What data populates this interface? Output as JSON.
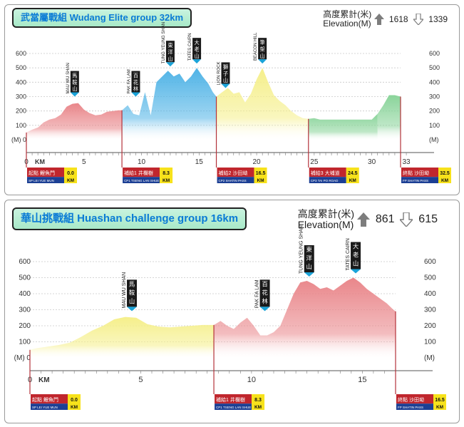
{
  "colors": {
    "red": "#e9868a",
    "blue": "#4fb3e6",
    "yellow": "#f5ef8a",
    "green": "#8ad49a",
    "peak_flag": "#1a1a1a",
    "flag_tip": "#1aa3d8"
  },
  "chart_data": [
    {
      "type": "area",
      "title": "武當屬戰組  Wudang Elite group 32km",
      "elevation_label_cn": "高度累計(米)",
      "elevation_label_en": "Elevation(M)",
      "ascent": "1618",
      "descent": "1339",
      "y_unit_label": "(M)",
      "x_unit_label": "KM",
      "xlim": [
        0,
        33
      ],
      "ylim": [
        0,
        600
      ],
      "x_ticks": [
        "0",
        "5",
        "10",
        "15",
        "20",
        "25",
        "30",
        "33"
      ],
      "x_tick_values": [
        0,
        5,
        10,
        15,
        20,
        25,
        30,
        33
      ],
      "y_ticks": [
        "600",
        "500",
        "400",
        "300",
        "200",
        "100",
        "0"
      ],
      "y_tick_values": [
        600,
        500,
        400,
        300,
        200,
        100,
        0
      ],
      "profile": {
        "x": [
          0,
          0.5,
          1,
          1.5,
          2,
          2.5,
          3,
          3.5,
          4,
          4.5,
          5,
          5.5,
          6,
          6.5,
          7,
          7.5,
          8,
          8.3,
          8.8,
          9.3,
          9.8,
          10.3,
          10.8,
          11.3,
          11.8,
          12.3,
          12.8,
          13.3,
          13.8,
          14.3,
          14.8,
          15.3,
          15.8,
          16.2,
          16.5,
          17,
          17.5,
          18,
          18.5,
          19,
          19.5,
          20,
          20.5,
          21,
          21.5,
          22,
          22.5,
          23,
          23.5,
          24,
          24.5,
          25,
          25.5,
          26,
          27,
          28,
          29,
          30,
          30.5,
          31,
          31.5,
          32,
          32.5
        ],
        "y": [
          50,
          70,
          85,
          120,
          140,
          150,
          175,
          230,
          250,
          255,
          210,
          185,
          170,
          175,
          195,
          200,
          205,
          205,
          240,
          180,
          170,
          330,
          170,
          400,
          440,
          480,
          440,
          460,
          400,
          440,
          500,
          440,
          390,
          330,
          300,
          330,
          360,
          320,
          330,
          260,
          320,
          420,
          500,
          400,
          310,
          270,
          240,
          200,
          170,
          150,
          145,
          150,
          140,
          140,
          140,
          140,
          140,
          140,
          180,
          240,
          310,
          310,
          300
        ]
      },
      "segments": [
        {
          "from": 0,
          "to": 8.3,
          "color": "red"
        },
        {
          "from": 8.3,
          "to": 16.5,
          "color": "blue"
        },
        {
          "from": 16.5,
          "to": 24.5,
          "color": "yellow"
        },
        {
          "from": 24.5,
          "to": 30.5,
          "color": "green_flat"
        },
        {
          "from": 30.5,
          "to": 32.5,
          "color": "green"
        }
      ],
      "peaks": [
        {
          "name": "MAU WU SHAN",
          "cn": "馬鞍山",
          "km": 4.2,
          "height": 270
        },
        {
          "name": "PAK FA LAM",
          "cn": "百花林",
          "km": 9.5,
          "height": 270
        },
        {
          "name": "TUNG YEUNG SHAN",
          "cn": "東洋山",
          "km": 12.5,
          "height": 480
        },
        {
          "name": "TATES CAIRN",
          "cn": "大老山",
          "km": 14.8,
          "height": 500
        },
        {
          "name": "LION ROCK",
          "cn": "獅子山",
          "km": 17.3,
          "height": 330
        },
        {
          "name": "BEACON HILL",
          "cn": "筆架山",
          "km": 20.5,
          "height": 500
        }
      ],
      "checkpoints": [
        {
          "km": 0,
          "tag": "起點",
          "cn": "鯉魚門",
          "en": "SP LEI YUE MUN",
          "dist": "0.0",
          "unit": "KM"
        },
        {
          "km": 8.3,
          "tag": "補給1",
          "cn": "井欄樹",
          "en": "CP1 TSENG LAN SHUE",
          "dist": "8.3",
          "unit": "KM"
        },
        {
          "km": 16.5,
          "tag": "補給2",
          "cn": "沙田坳",
          "en": "CP2 SHATIN PASS",
          "dist": "16.5",
          "unit": "KM"
        },
        {
          "km": 24.5,
          "tag": "補給3",
          "cn": "大埔道",
          "en": "CP3 TAI PO ROAD",
          "dist": "24.5",
          "unit": "KM"
        },
        {
          "km": 32.5,
          "tag": "終點",
          "cn": "沙田坳",
          "en": "FP SHATIN PASS",
          "dist": "32.5",
          "unit": "KM"
        }
      ]
    },
    {
      "type": "area",
      "title": "華山挑戰組  Huashan challenge group 16km",
      "elevation_label_cn": "高度累計(米)",
      "elevation_label_en": "Elevation(M)",
      "ascent": "861",
      "descent": "615",
      "y_unit_label": "(M)",
      "x_unit_label": "KM",
      "xlim": [
        0,
        16.8
      ],
      "ylim": [
        0,
        600
      ],
      "x_ticks": [
        "0",
        "5",
        "10",
        "15"
      ],
      "x_tick_values": [
        0,
        5,
        10,
        15
      ],
      "y_ticks": [
        "600",
        "500",
        "400",
        "300",
        "200",
        "100",
        "0"
      ],
      "y_tick_values": [
        600,
        500,
        400,
        300,
        200,
        100,
        0
      ],
      "profile": {
        "x": [
          0,
          0.3,
          0.8,
          1.3,
          1.8,
          2.3,
          2.8,
          3.3,
          3.8,
          4.3,
          4.8,
          5.3,
          5.8,
          6.3,
          6.8,
          7.3,
          7.8,
          8.3,
          8.6,
          8.9,
          9.2,
          9.5,
          9.8,
          10.1,
          10.4,
          10.7,
          11,
          11.3,
          11.6,
          11.9,
          12.2,
          12.5,
          12.8,
          13.1,
          13.4,
          13.7,
          14,
          14.3,
          14.6,
          14.9,
          15.2,
          15.5,
          15.8,
          16.1,
          16.4,
          16.5
        ],
        "y": [
          50,
          60,
          70,
          80,
          95,
          130,
          170,
          200,
          240,
          255,
          250,
          210,
          195,
          190,
          195,
          200,
          205,
          205,
          230,
          200,
          180,
          220,
          250,
          200,
          140,
          140,
          160,
          200,
          300,
          400,
          470,
          480,
          460,
          430,
          440,
          420,
          450,
          480,
          500,
          470,
          430,
          400,
          370,
          340,
          300,
          290
        ]
      },
      "segments": [
        {
          "from": 0,
          "to": 8.3,
          "color": "yellow"
        },
        {
          "from": 8.3,
          "to": 16.5,
          "color": "red"
        }
      ],
      "peaks": [
        {
          "name": "MAU WU SHAN",
          "cn": "馬鞍山",
          "km": 4.6,
          "height": 265
        },
        {
          "name": "PAK FA LAM",
          "cn": "百花林",
          "km": 10.6,
          "height": 265
        },
        {
          "name": "TUNG YEUNG SHAN",
          "cn": "東洋山",
          "km": 12.6,
          "height": 480
        },
        {
          "name": "TATES CAIRN",
          "cn": "大老山",
          "km": 14.7,
          "height": 500
        }
      ],
      "checkpoints": [
        {
          "km": 0,
          "tag": "起點",
          "cn": "鯉魚門",
          "en": "SP LEI YUE MUN",
          "dist": "0.0",
          "unit": "KM"
        },
        {
          "km": 8.3,
          "tag": "補給1",
          "cn": "井欄樹",
          "en": "CP1 TSENG LAN SHUE",
          "dist": "8.3",
          "unit": "KM"
        },
        {
          "km": 16.5,
          "tag": "終點",
          "cn": "沙田坳",
          "en": "FP SHATIN PASS",
          "dist": "16.5",
          "unit": "KM"
        }
      ]
    }
  ]
}
